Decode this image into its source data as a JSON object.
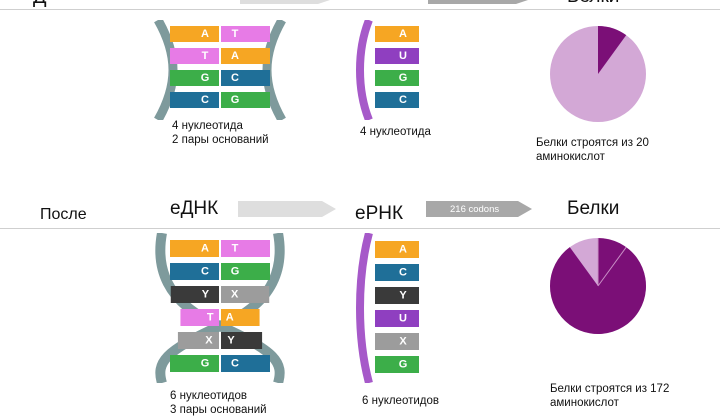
{
  "top_row": {
    "label_clipped": "Д",
    "protein_header_clipped": "Белки",
    "dna": {
      "pairs": [
        {
          "left": "A",
          "right": "T",
          "left_color": "#f6a623",
          "right_color": "#e77be6"
        },
        {
          "left": "T",
          "right": "A",
          "left_color": "#e77be6",
          "right_color": "#f6a623"
        },
        {
          "left": "G",
          "right": "C",
          "left_color": "#3cae49",
          "right_color": "#1f6f98"
        },
        {
          "left": "C",
          "right": "G",
          "left_color": "#1f6f98",
          "right_color": "#3cae49"
        }
      ],
      "caption_line1": "4 нуклеотида",
      "caption_line2": "2 пары оснований"
    },
    "rna": {
      "bases": [
        {
          "letter": "A",
          "color": "#f6a623"
        },
        {
          "letter": "U",
          "color": "#8f3fc0"
        },
        {
          "letter": "G",
          "color": "#3cae49"
        },
        {
          "letter": "C",
          "color": "#1f6f98"
        }
      ],
      "caption": "4 нуклеотида"
    },
    "protein": {
      "caption_line1": "Белки строятся из 20",
      "caption_line2": "аминокислот",
      "dark_fraction": 0.1
    }
  },
  "bottom_row": {
    "row_label": "После",
    "stage_dna": "еДНК",
    "stage_rna": "еРНК",
    "codons_label": "216 codons",
    "stage_protein": "Белки",
    "dna": {
      "pairs": [
        {
          "left": "A",
          "right": "T",
          "left_color": "#f6a623",
          "right_color": "#e77be6"
        },
        {
          "left": "C",
          "right": "G",
          "left_color": "#1f6f98",
          "right_color": "#3cae49"
        },
        {
          "left": "Y",
          "right": "X",
          "left_color": "#3a3a3a",
          "right_color": "#9c9c9c"
        },
        {
          "left": "T",
          "right": "A",
          "left_color": "#e77be6",
          "right_color": "#f6a623"
        },
        {
          "left": "X",
          "right": "Y",
          "left_color": "#9c9c9c",
          "right_color": "#3a3a3a"
        },
        {
          "left": "G",
          "right": "C",
          "left_color": "#3cae49",
          "right_color": "#1f6f98"
        }
      ],
      "caption_line1": "6 нуклеотидов",
      "caption_line2": "3 пары оснований"
    },
    "rna": {
      "bases": [
        {
          "letter": "A",
          "color": "#f6a623"
        },
        {
          "letter": "C",
          "color": "#1f6f98"
        },
        {
          "letter": "Y",
          "color": "#3a3a3a"
        },
        {
          "letter": "U",
          "color": "#8f3fc0"
        },
        {
          "letter": "X",
          "color": "#9c9c9c"
        },
        {
          "letter": "G",
          "color": "#3cae49"
        }
      ],
      "caption": "6 нуклеотидов"
    },
    "protein": {
      "caption_line1": "Белки строятся из 172",
      "caption_line2": "аминокислот",
      "dark_fraction": 0.9
    }
  },
  "colors": {
    "backbone": "#7e9a9c",
    "rna_backbone": "#a659c9",
    "pie_light": "#d3a8d6",
    "pie_dark": "#7b0f77",
    "arrow": "#dedede"
  }
}
